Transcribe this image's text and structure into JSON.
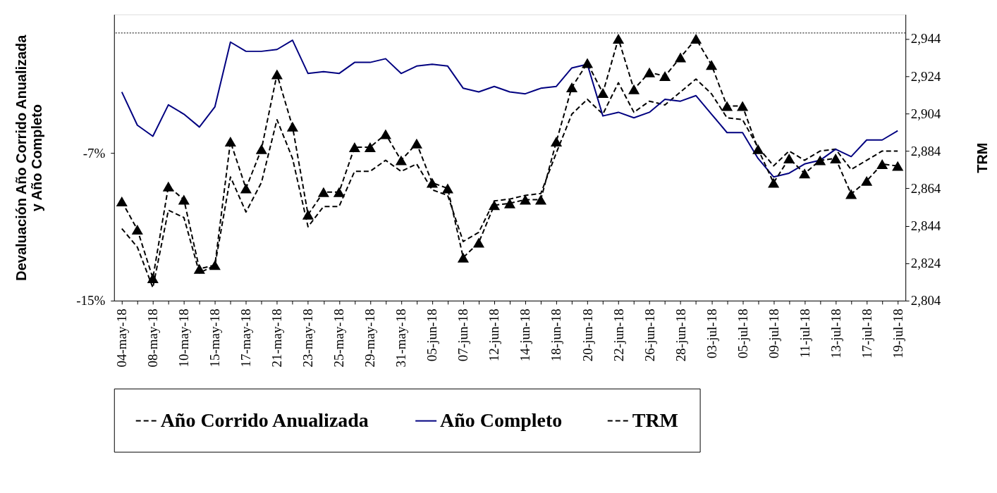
{
  "chart_data": {
    "type": "line",
    "ylabel": "Devaluación Año Corrido Anualizada y Año Completo",
    "y2label": "TRM",
    "categories": [
      "04-may-18",
      null,
      "08-may-18",
      null,
      "10-may-18",
      null,
      "15-may-18",
      null,
      "17-may-18",
      null,
      "21-may-18",
      null,
      "23-may-18",
      null,
      "25-may-18",
      null,
      "29-may-18",
      null,
      "31-may-18",
      null,
      "05-jun-18",
      null,
      "07-jun-18",
      null,
      "12-jun-18",
      null,
      "14-jun-18",
      null,
      "18-jun-18",
      null,
      "20-jun-18",
      null,
      "22-jun-18",
      null,
      "26-jun-18",
      null,
      "28-jun-18",
      null,
      "03-jul-18",
      null,
      "05-jul-18",
      null,
      "09-jul-18",
      null,
      "11-jul-18",
      null,
      "13-jul-18",
      null,
      "17-jul-18",
      null,
      "19-jul-18"
    ],
    "series": [
      {
        "name": "Año Corrido Anualizada",
        "color": "#000000",
        "line_style": "dashed",
        "values": [
          -11.1,
          -12.1,
          -14.3,
          -10.1,
          -10.5,
          -13.5,
          -13.1,
          -8.3,
          -10.2,
          -8.6,
          -5.2,
          -7.3,
          -11.0,
          -9.9,
          -9.9,
          -8.0,
          -8.0,
          -7.4,
          -8.0,
          -7.6,
          -9.0,
          -9.3,
          -11.8,
          -11.3,
          -9.6,
          -9.5,
          -9.3,
          -9.2,
          -7.0,
          -4.9,
          -4.1,
          -4.9,
          -3.2,
          -4.8,
          -4.2,
          -4.4,
          -3.7,
          -3.0,
          -3.8,
          -5.1,
          -5.2,
          -6.7,
          -7.7,
          -6.9,
          -7.4,
          -6.9,
          -6.8,
          -7.9,
          -7.4,
          -6.9,
          -6.9
        ]
      },
      {
        "name": "Año Completo",
        "color": "#000080",
        "line_style": "solid",
        "values": [
          -3.7,
          -5.5,
          -6.1,
          -4.4,
          -4.9,
          -5.6,
          -4.5,
          -1.0,
          -1.5,
          -1.5,
          -1.4,
          -0.9,
          -2.7,
          -2.6,
          -2.7,
          -2.1,
          -2.1,
          -1.9,
          -2.7,
          -2.3,
          -2.2,
          -2.3,
          -3.5,
          -3.7,
          -3.4,
          -3.7,
          -3.8,
          -3.5,
          -3.4,
          -2.4,
          -2.2,
          -5.0,
          -4.8,
          -5.1,
          -4.8,
          -4.1,
          -4.2,
          -3.9,
          -4.9,
          -5.9,
          -5.9,
          -7.3,
          -8.3,
          -8.1,
          -7.6,
          -7.4,
          -6.8,
          -7.2,
          -6.3,
          -6.3,
          -5.8
        ]
      },
      {
        "name": "TRM",
        "color": "#000000",
        "line_style": "dashed",
        "marker": "triangle",
        "axis": "y2",
        "values": [
          2857,
          2842,
          2816,
          2865,
          2858,
          2821,
          2823,
          2889,
          2864,
          2885,
          2925,
          2897,
          2850,
          2862,
          2862,
          2886,
          2886,
          2893,
          2879,
          2888,
          2867,
          2864,
          2827,
          2835,
          2855,
          2856,
          2858,
          2858,
          2889,
          2918,
          2931,
          2915,
          2944,
          2917,
          2926,
          2924,
          2934,
          2944,
          2930,
          2908,
          2908,
          2885,
          2867,
          2880,
          2872,
          2879,
          2880,
          2861,
          2868,
          2877,
          2876
        ]
      }
    ],
    "ylim": [
      -15,
      0.5
    ],
    "yticks": [
      {
        "value": -15,
        "label": "-15%"
      },
      {
        "value": -7,
        "label": "-7%"
      }
    ],
    "y2lim": [
      2804,
      2957
    ],
    "y2ticks": [
      {
        "value": 2804,
        "label": "2,804"
      },
      {
        "value": 2824,
        "label": "2,824"
      },
      {
        "value": 2844,
        "label": "2,844"
      },
      {
        "value": 2864,
        "label": "2,864"
      },
      {
        "value": 2884,
        "label": "2,884"
      },
      {
        "value": 2904,
        "label": "2,904"
      },
      {
        "value": 2924,
        "label": "2,924"
      },
      {
        "value": 2944,
        "label": "2,944"
      }
    ],
    "ref_lines": [
      {
        "axis": "y",
        "value": -0.5,
        "label": null,
        "color": "#555555",
        "line_style": "dotted"
      }
    ],
    "grid": false,
    "legend": "bottom"
  }
}
